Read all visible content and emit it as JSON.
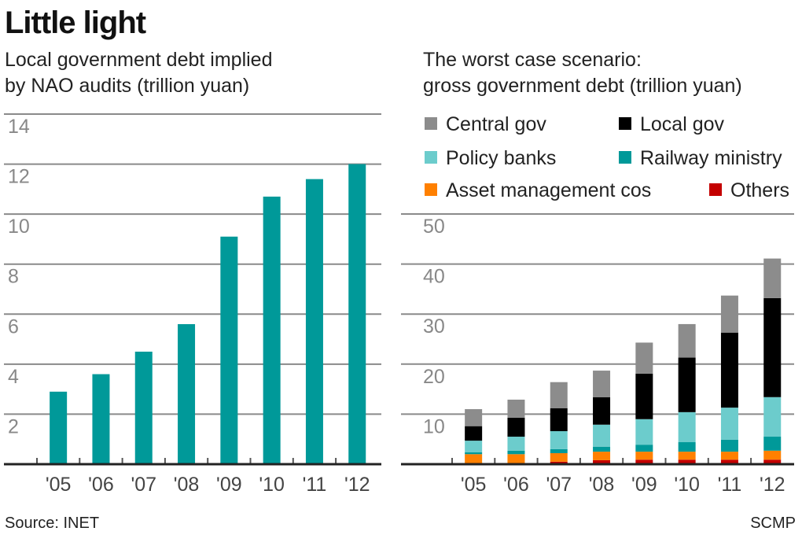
{
  "title": "Little light",
  "source": "Source: INET",
  "credit": "SCMP",
  "colors": {
    "bar": "#009999",
    "grid": "#8a8a8a",
    "axis": "#222222"
  },
  "chart_data": [
    {
      "type": "bar",
      "title_lines": [
        "Local government debt implied",
        "by NAO audits (trillion yuan)"
      ],
      "categories": [
        "'05",
        "'06",
        "'07",
        "'08",
        "'09",
        "'10",
        "'11",
        "'12"
      ],
      "values": [
        2.9,
        3.6,
        4.5,
        5.6,
        9.1,
        10.7,
        11.4,
        12.0
      ],
      "ylim": [
        0,
        14
      ],
      "yticks": [
        2,
        4,
        6,
        8,
        10,
        12,
        14
      ],
      "grid": true
    },
    {
      "type": "stacked-bar",
      "title_lines": [
        "The worst case scenario:",
        "gross government debt (trillion yuan)"
      ],
      "categories": [
        "'05",
        "'06",
        "'07",
        "'08",
        "'09",
        "'10",
        "'11",
        "'12"
      ],
      "ylim": [
        0,
        50
      ],
      "yticks": [
        10,
        20,
        30,
        40,
        50
      ],
      "grid": true,
      "legend_position": "top",
      "series": [
        {
          "name": "Others",
          "color": "#c40000",
          "values": [
            0,
            0,
            0.5,
            0.8,
            0.9,
            0.9,
            0.9,
            0.9
          ]
        },
        {
          "name": "Asset management cos",
          "color": "#ff8000",
          "values": [
            2.0,
            2.0,
            1.7,
            1.7,
            1.6,
            1.6,
            1.6,
            1.8
          ]
        },
        {
          "name": "Railway ministry",
          "color": "#009999",
          "values": [
            0.4,
            0.7,
            0.8,
            1.0,
            1.4,
            1.9,
            2.4,
            2.8
          ]
        },
        {
          "name": "Policy banks",
          "color": "#6ccccc",
          "values": [
            2.3,
            2.8,
            3.6,
            4.4,
            5.1,
            6.0,
            6.4,
            7.9
          ]
        },
        {
          "name": "Local gov",
          "color": "#000000",
          "values": [
            2.9,
            3.8,
            4.6,
            5.5,
            9.1,
            10.9,
            15.0,
            19.8
          ]
        },
        {
          "name": "Central gov",
          "color": "#8c8c8c",
          "values": [
            3.4,
            3.6,
            5.2,
            5.3,
            6.2,
            6.7,
            7.4,
            7.9
          ]
        }
      ],
      "legend_order": [
        "Central gov",
        "Local gov",
        "Policy banks",
        "Railway ministry",
        "Asset management cos",
        "Others"
      ]
    }
  ]
}
